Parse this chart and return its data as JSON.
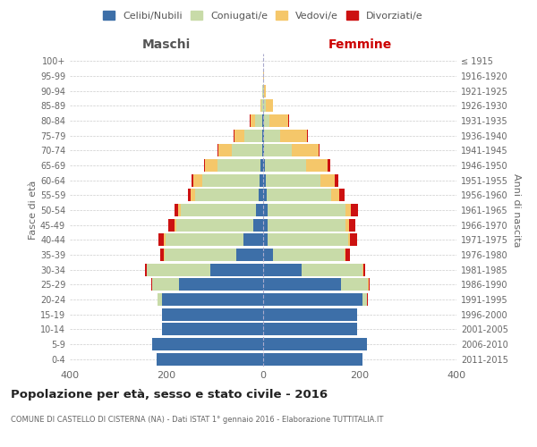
{
  "age_groups": [
    "0-4",
    "5-9",
    "10-14",
    "15-19",
    "20-24",
    "25-29",
    "30-34",
    "35-39",
    "40-44",
    "45-49",
    "50-54",
    "55-59",
    "60-64",
    "65-69",
    "70-74",
    "75-79",
    "80-84",
    "85-89",
    "90-94",
    "95-99",
    "100+"
  ],
  "birth_years": [
    "2011-2015",
    "2006-2010",
    "2001-2005",
    "1996-2000",
    "1991-1995",
    "1986-1990",
    "1981-1985",
    "1976-1980",
    "1971-1975",
    "1966-1970",
    "1961-1965",
    "1956-1960",
    "1951-1955",
    "1946-1950",
    "1941-1945",
    "1936-1940",
    "1931-1935",
    "1926-1930",
    "1921-1925",
    "1916-1920",
    "≤ 1915"
  ],
  "male": {
    "celibi": [
      220,
      230,
      210,
      210,
      210,
      175,
      110,
      55,
      40,
      20,
      15,
      10,
      8,
      5,
      2,
      1,
      1,
      0,
      0,
      0,
      0
    ],
    "coniugati": [
      0,
      0,
      0,
      0,
      8,
      55,
      130,
      148,
      162,
      160,
      155,
      130,
      118,
      90,
      62,
      38,
      15,
      3,
      1,
      0,
      0
    ],
    "vedovi": [
      0,
      0,
      0,
      0,
      0,
      0,
      1,
      2,
      3,
      4,
      6,
      10,
      18,
      25,
      28,
      20,
      10,
      3,
      1,
      0,
      0
    ],
    "divorziati": [
      0,
      0,
      0,
      0,
      1,
      2,
      4,
      8,
      12,
      12,
      8,
      6,
      5,
      2,
      2,
      2,
      1,
      0,
      0,
      0,
      0
    ]
  },
  "female": {
    "nubili": [
      205,
      215,
      195,
      195,
      205,
      162,
      80,
      20,
      10,
      10,
      10,
      8,
      6,
      4,
      2,
      1,
      1,
      0,
      0,
      0,
      0
    ],
    "coniugate": [
      0,
      0,
      0,
      0,
      10,
      55,
      125,
      148,
      165,
      160,
      160,
      132,
      112,
      85,
      58,
      35,
      12,
      5,
      1,
      0,
      0
    ],
    "vedove": [
      0,
      0,
      0,
      0,
      0,
      1,
      2,
      2,
      4,
      8,
      12,
      18,
      30,
      45,
      55,
      55,
      38,
      15,
      5,
      2,
      0
    ],
    "divorziate": [
      0,
      0,
      0,
      0,
      1,
      2,
      5,
      10,
      15,
      12,
      15,
      10,
      8,
      4,
      2,
      2,
      2,
      0,
      0,
      0,
      0
    ]
  },
  "colors": {
    "celibi": "#3d6fa8",
    "coniugati": "#c8dba8",
    "vedovi": "#f5c76a",
    "divorziati": "#cc1111"
  },
  "xlim": 400,
  "title": "Popolazione per età, sesso e stato civile - 2016",
  "subtitle": "COMUNE DI CASTELLO DI CISTERNA (NA) - Dati ISTAT 1° gennaio 2016 - Elaborazione TUTTITALIA.IT",
  "ylabel_left": "Fasce di età",
  "ylabel_right": "Anni di nascita",
  "legend_labels": [
    "Celibi/Nubili",
    "Coniugati/e",
    "Vedovi/e",
    "Divorziati/e"
  ],
  "maschi_label": "Maschi",
  "femmine_label": "Femmine"
}
